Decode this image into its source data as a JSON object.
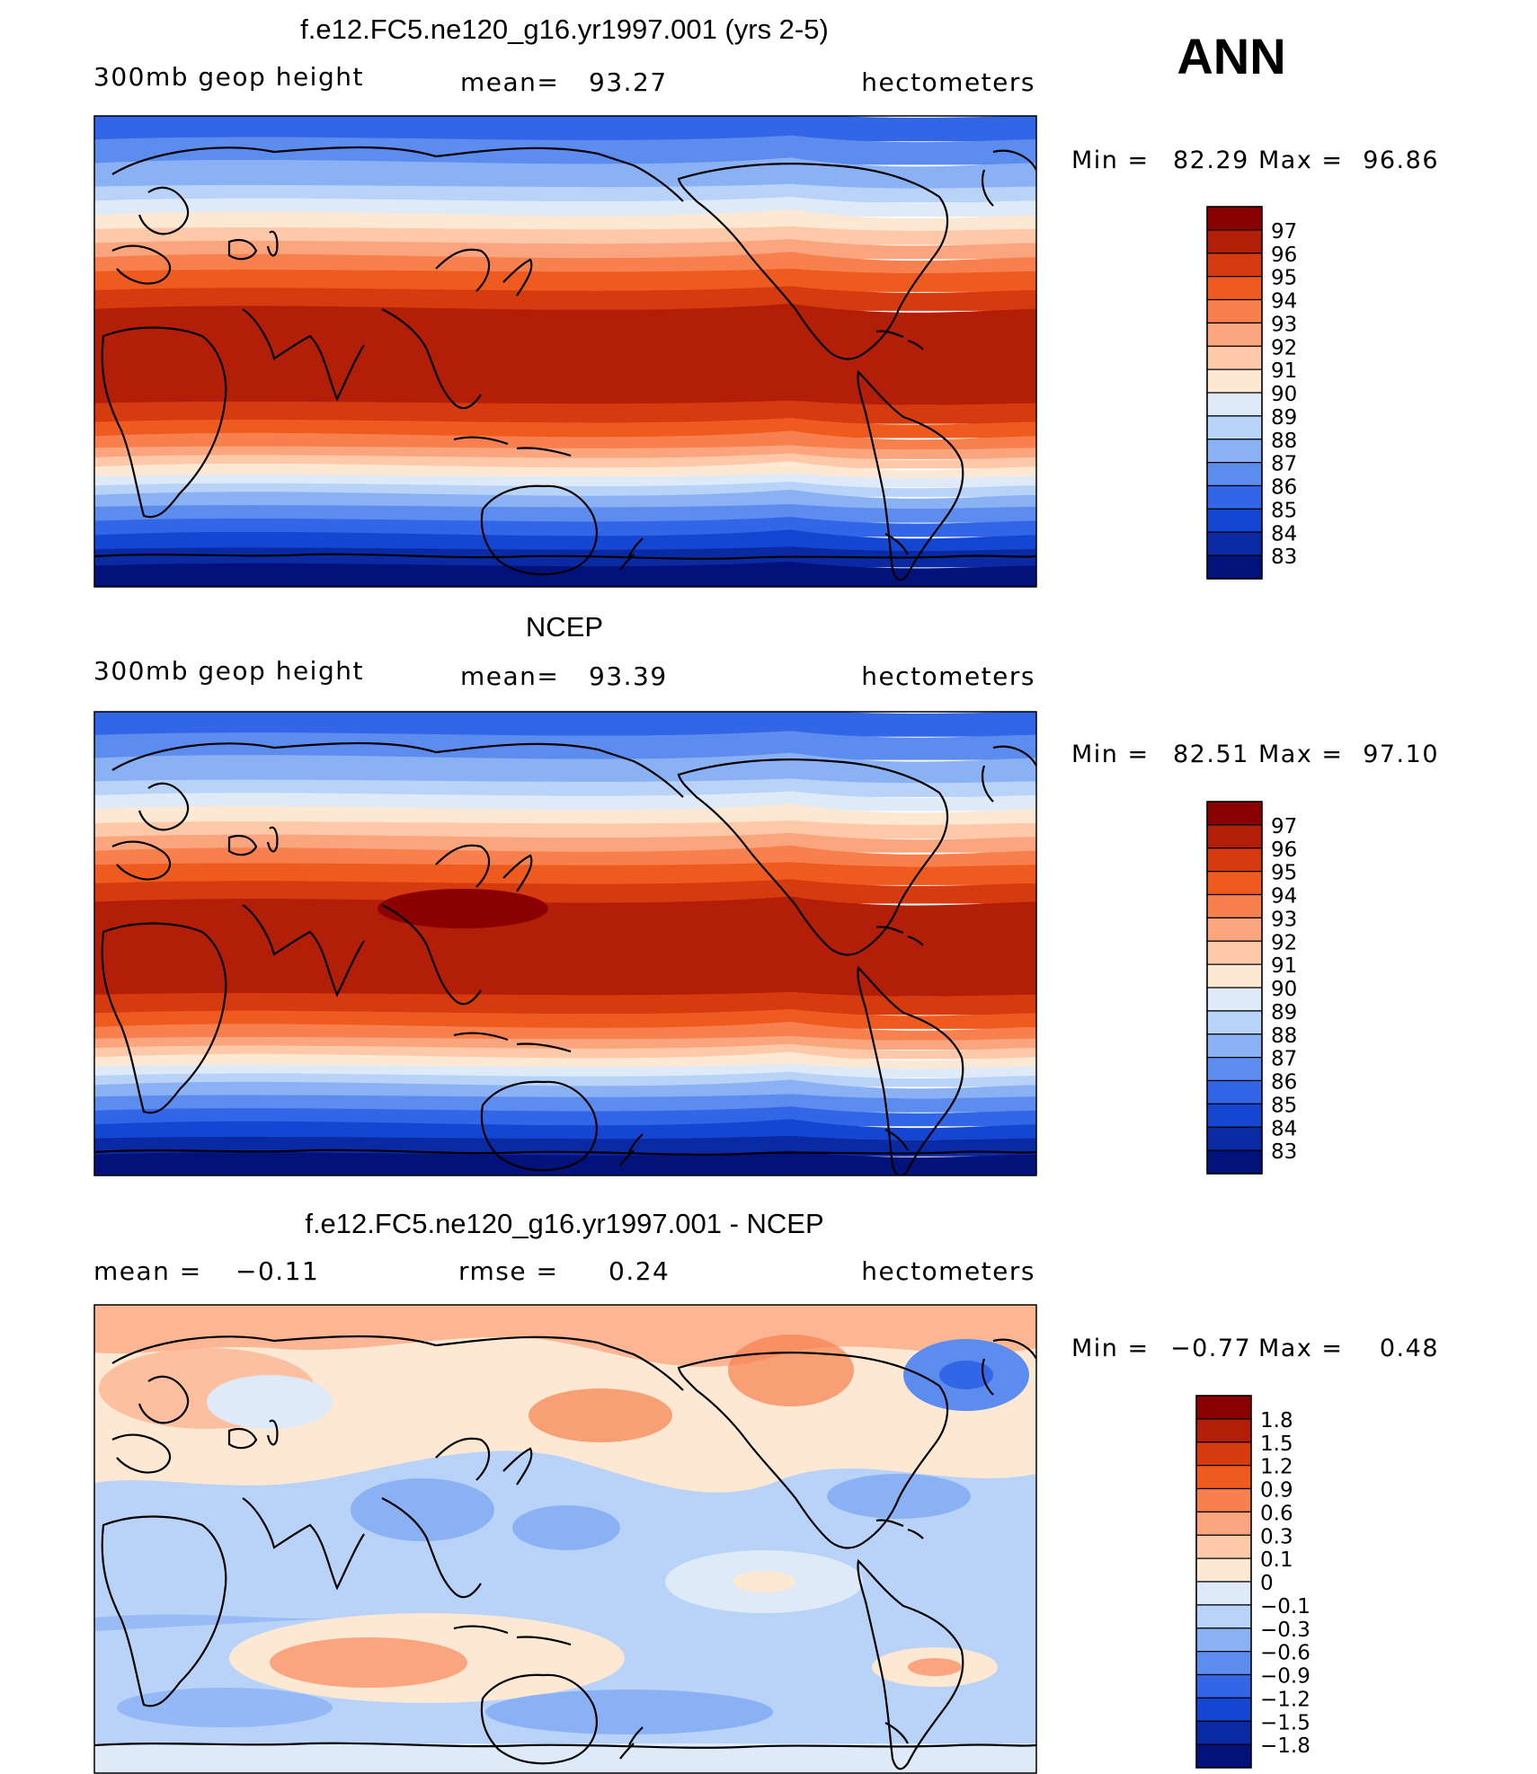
{
  "season": "ANN",
  "panels": [
    {
      "title": "f.e12.FC5.ne120_g16.yr1997.001 (yrs 2-5)",
      "left_label": "300mb geop height",
      "mean_label": "mean=",
      "mean_value": "93.27",
      "units": "hectometers",
      "min_label": "Min =",
      "min_value": "82.29",
      "max_label": "Max =",
      "max_value": "96.86",
      "colorbar_labels": [
        "97",
        "96",
        "95",
        "94",
        "93",
        "92",
        "91",
        "90",
        "89",
        "88",
        "87",
        "86",
        "85",
        "84",
        "83"
      ],
      "colorbar_colors": [
        "#8b0000",
        "#b21e07",
        "#d63a0f",
        "#ef5a1e",
        "#f7804e",
        "#fba57e",
        "#fdc9a8",
        "#fde8d4",
        "#deeaf8",
        "#b8d2f8",
        "#8ab1f4",
        "#5c8cee",
        "#3266e6",
        "#1446d2",
        "#0a2aa4",
        "#03127a"
      ],
      "field": "model"
    },
    {
      "title": "NCEP",
      "left_label": "300mb geop height",
      "mean_label": "mean=",
      "mean_value": "93.39",
      "units": "hectometers",
      "min_label": "Min =",
      "min_value": "82.51",
      "max_label": "Max =",
      "max_value": "97.10",
      "colorbar_labels": [
        "97",
        "96",
        "95",
        "94",
        "93",
        "92",
        "91",
        "90",
        "89",
        "88",
        "87",
        "86",
        "85",
        "84",
        "83"
      ],
      "colorbar_colors": [
        "#8b0000",
        "#b21e07",
        "#d63a0f",
        "#ef5a1e",
        "#f7804e",
        "#fba57e",
        "#fdc9a8",
        "#fde8d4",
        "#deeaf8",
        "#b8d2f8",
        "#8ab1f4",
        "#5c8cee",
        "#3266e6",
        "#1446d2",
        "#0a2aa4",
        "#03127a"
      ],
      "field": "obs"
    },
    {
      "title": "f.e12.FC5.ne120_g16.yr1997.001 - NCEP",
      "left_label": "mean =",
      "left_value": "−0.11",
      "mean_label": "rmse =",
      "mean_value": "0.24",
      "units": "hectometers",
      "min_label": "Min =",
      "min_value": "−0.77",
      "max_label": "Max =",
      "max_value": "0.48",
      "colorbar_labels": [
        "1.8",
        "1.5",
        "1.2",
        "0.9",
        "0.6",
        "0.3",
        "0.1",
        "0",
        "−0.1",
        "−0.3",
        "−0.6",
        "−0.9",
        "−1.2",
        "−1.5",
        "−1.8"
      ],
      "colorbar_colors": [
        "#8b0000",
        "#b21e07",
        "#d63a0f",
        "#ef5a1e",
        "#f7804e",
        "#fba57e",
        "#fdc9a8",
        "#fde8d4",
        "#deeaf8",
        "#b8d2f8",
        "#8ab1f4",
        "#5c8cee",
        "#3266e6",
        "#1446d2",
        "#0a2aa4",
        "#03127a"
      ],
      "field": "diff"
    }
  ]
}
